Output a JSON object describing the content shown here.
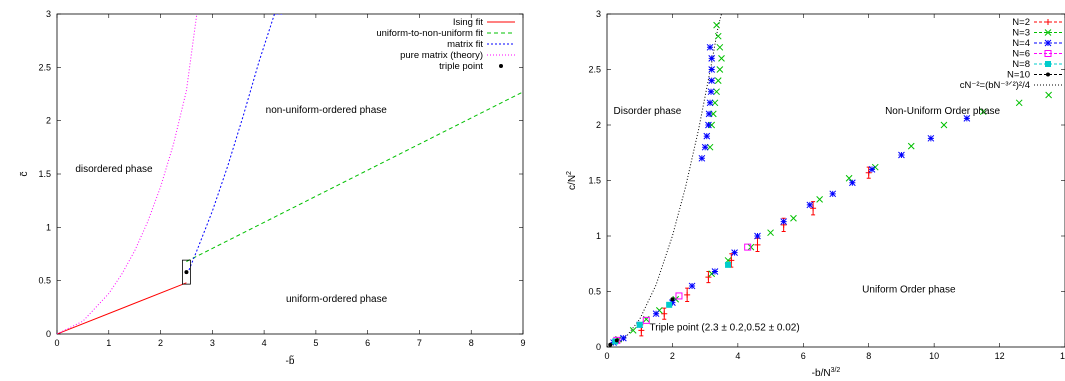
{
  "chart_data": [
    {
      "type": "line",
      "xlabel": "-b̃",
      "ylabel": "c̃",
      "xlim": [
        0,
        9
      ],
      "ylim": [
        0,
        3
      ],
      "xticks": [
        0,
        1,
        2,
        3,
        4,
        5,
        6,
        7,
        8,
        9
      ],
      "yticks": [
        0,
        0.5,
        1,
        1.5,
        2,
        2.5,
        3
      ],
      "ytick_labels": [
        "0",
        "0.5",
        "1",
        "1.5",
        "2",
        "2.5",
        "3"
      ],
      "grid": false,
      "legend_position": "top-right",
      "series": [
        {
          "name": "Ising fit",
          "color": "#ff0000",
          "dash": "",
          "x": [
            0,
            2.5
          ],
          "y": [
            0,
            0.48
          ]
        },
        {
          "name": "uniform-to-non-uniform fit",
          "color": "#00c000",
          "dash": "4,3",
          "x": [
            2.5,
            9.0
          ],
          "y": [
            0.68,
            2.27
          ]
        },
        {
          "name": "matrix fit",
          "color": "#0000ff",
          "dash": "2,2",
          "x": [
            2.55,
            2.7,
            3.0,
            3.3,
            3.6,
            3.9,
            4.2,
            4.35
          ],
          "y": [
            0.6,
            0.78,
            1.15,
            1.58,
            2.05,
            2.55,
            3.0,
            3.0
          ]
        },
        {
          "name": "pure matrix (theory)",
          "color": "#ff00ff",
          "dash": "1,2",
          "x": [
            0,
            0.5,
            1.0,
            1.25,
            1.5,
            1.75,
            2.0,
            2.25,
            2.5,
            2.7
          ],
          "y": [
            0,
            0.12,
            0.38,
            0.56,
            0.78,
            1.05,
            1.38,
            1.78,
            2.28,
            3.0
          ]
        }
      ],
      "points": [
        {
          "name": "triple point",
          "x": 2.5,
          "y": 0.58,
          "color": "#000000"
        }
      ],
      "annotations": [
        {
          "text": "disordered phase",
          "x": 1.1,
          "y": 1.52
        },
        {
          "text": "non-uniform-ordered phase",
          "x": 5.2,
          "y": 2.07
        },
        {
          "text": "uniform-ordered phase",
          "x": 5.4,
          "y": 0.3
        }
      ]
    },
    {
      "type": "scatter",
      "xlabel": "-b/N",
      "xlabel_sup": "3/2",
      "ylabel": "c/N",
      "ylabel_sup": "2",
      "xlim": [
        0,
        14
      ],
      "ylim": [
        0,
        3
      ],
      "xticks": [
        0,
        2,
        4,
        6,
        8,
        10,
        12,
        14
      ],
      "yticks": [
        0,
        0.5,
        1,
        1.5,
        2,
        2.5,
        3
      ],
      "ytick_labels": [
        "0",
        "0.5",
        "1",
        "1.5",
        "2",
        "2.5",
        "3"
      ],
      "grid": false,
      "legend_position": "top-right",
      "series": [
        {
          "name": "N=2",
          "color": "#ff0000",
          "marker": "plus",
          "x": [
            1.05,
            1.75,
            2.45,
            3.1,
            3.8,
            4.6,
            5.4,
            6.3,
            8.0
          ],
          "y": [
            0.15,
            0.3,
            0.47,
            0.63,
            0.78,
            0.92,
            1.1,
            1.25,
            1.57
          ],
          "err": [
            0.05,
            0.05,
            0.06,
            0.05,
            0.06,
            0.06,
            0.06,
            0.06,
            0.05
          ]
        },
        {
          "name": "N=3",
          "color": "#00c000",
          "marker": "cross",
          "x": [
            0.35,
            0.8,
            1.2,
            1.6,
            2.1,
            3.2,
            3.7,
            4.4,
            5.0,
            5.7,
            6.5,
            7.4,
            8.2,
            9.3,
            10.3,
            11.5,
            12.6,
            13.5,
            3.35,
            3.4,
            3.45,
            3.5,
            3.45,
            3.4,
            3.35,
            3.3,
            3.25,
            3.2,
            3.15
          ],
          "y": [
            0.07,
            0.15,
            0.25,
            0.33,
            0.43,
            0.66,
            0.78,
            0.9,
            1.03,
            1.16,
            1.33,
            1.52,
            1.62,
            1.81,
            2.0,
            2.12,
            2.2,
            2.27,
            2.9,
            2.8,
            2.7,
            2.6,
            2.5,
            2.4,
            2.3,
            2.2,
            2.1,
            2.0,
            1.8
          ]
        },
        {
          "name": "N=4",
          "color": "#0000ff",
          "marker": "star",
          "x": [
            0.2,
            0.5,
            1.0,
            1.5,
            2.0,
            2.6,
            3.3,
            3.9,
            4.6,
            5.4,
            6.2,
            6.9,
            7.5,
            8.1,
            9.0,
            9.9,
            11.0,
            3.15,
            3.2,
            3.2,
            3.2,
            3.18,
            3.15,
            3.12,
            3.1,
            3.05,
            3.0,
            2.9
          ],
          "y": [
            0.04,
            0.08,
            0.2,
            0.3,
            0.4,
            0.55,
            0.68,
            0.85,
            1.0,
            1.13,
            1.28,
            1.38,
            1.48,
            1.6,
            1.73,
            1.88,
            2.06,
            2.7,
            2.6,
            2.5,
            2.4,
            2.3,
            2.2,
            2.1,
            2.0,
            1.9,
            1.8,
            1.7
          ]
        },
        {
          "name": "N=6",
          "color": "#ff00ff",
          "marker": "square",
          "x": [
            0.3,
            1.2,
            2.2,
            4.3
          ],
          "y": [
            0.06,
            0.24,
            0.46,
            0.9
          ]
        },
        {
          "name": "N=8",
          "color": "#00cccc",
          "marker": "filledsquare",
          "x": [
            0.25,
            1.0,
            1.9,
            3.7
          ],
          "y": [
            0.05,
            0.2,
            0.38,
            0.74
          ]
        },
        {
          "name": "N=10",
          "color": "#000000",
          "marker": "dot",
          "x": [
            0.1,
            0.3,
            2.0
          ],
          "y": [
            0.02,
            0.06,
            0.43
          ]
        }
      ],
      "curves": [
        {
          "name": "cN⁻²=(bN⁻³ᐟ²)²/4",
          "color": "#000000",
          "dash": "1,2",
          "x": [
            0,
            0.5,
            1.0,
            1.5,
            2.0,
            2.4,
            2.8,
            3.2,
            3.4,
            3.5
          ],
          "y": [
            0,
            0.06,
            0.25,
            0.56,
            1.0,
            1.44,
            1.96,
            2.56,
            2.89,
            3.0
          ]
        }
      ],
      "annotations": [
        {
          "text": "Disorder phase",
          "x": 0.2,
          "y": 2.1
        },
        {
          "text": "Non-Uniform Order phase",
          "x": 8.5,
          "y": 2.1
        },
        {
          "text": "Uniform Order phase",
          "x": 7.8,
          "y": 0.49
        },
        {
          "text": "Triple point  (2.3 ± 0.2,0.52 ± 0.02)",
          "x": 1.3,
          "y": 0.15
        }
      ],
      "legend_entries": [
        "N=2",
        "N=3",
        "N=4",
        "N=6",
        "N=8",
        "N=10",
        "cN⁻²=(bN⁻³ᐟ²)²/4"
      ]
    }
  ]
}
